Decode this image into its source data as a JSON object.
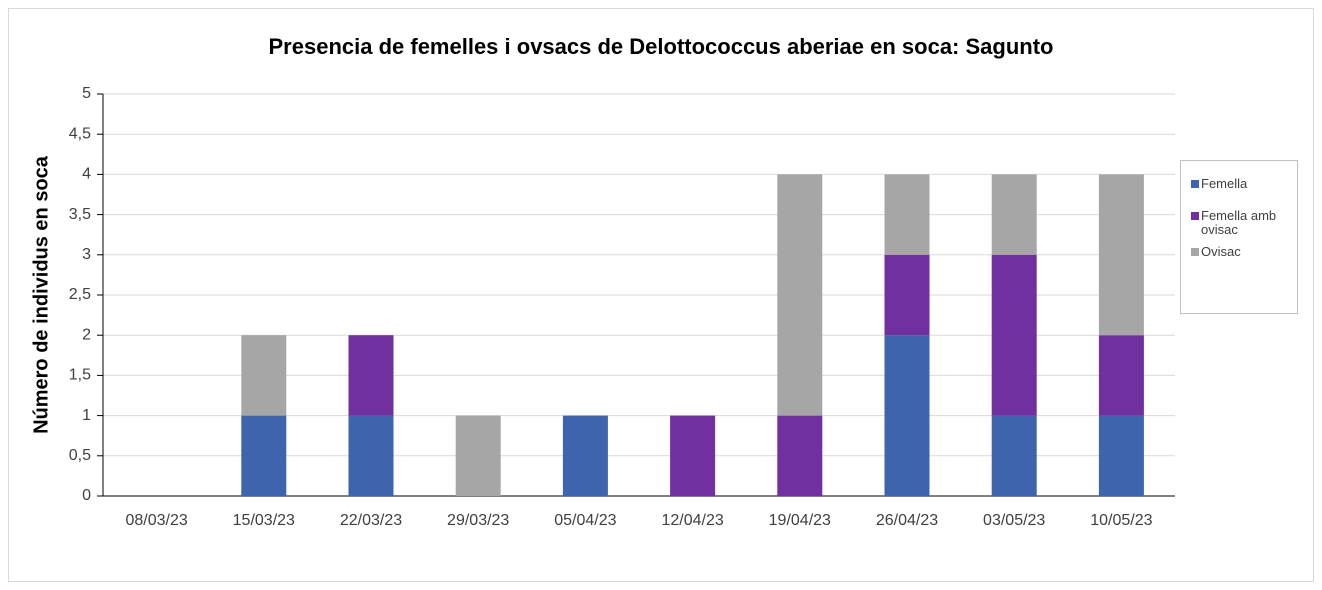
{
  "chart_data": {
    "type": "stacked_bar",
    "title": "Presencia de femelles i ovsacs de Delottococcus aberiae en soca: Sagunto",
    "y_label": "Número de individus en soca",
    "categories": [
      "08/03/23",
      "15/03/23",
      "22/03/23",
      "29/03/23",
      "05/04/23",
      "12/04/23",
      "19/04/23",
      "26/04/23",
      "03/05/23",
      "10/05/23"
    ],
    "series": [
      {
        "name": "Femella",
        "color": "#3d64ad",
        "values": [
          0,
          1,
          1,
          0,
          1,
          0,
          0,
          2,
          1,
          1
        ]
      },
      {
        "name": "Femella amb ovisac",
        "color": "#7030a0",
        "values": [
          0,
          0,
          1,
          0,
          0,
          1,
          1,
          1,
          2,
          1
        ]
      },
      {
        "name": "Ovisac",
        "color": "#a6a6a6",
        "values": [
          0,
          1,
          0,
          1,
          0,
          0,
          3,
          1,
          1,
          2
        ]
      }
    ],
    "ylim": [
      0,
      5
    ],
    "yticks": [
      0,
      {
        "value": 0.5,
        "label": "0,5"
      },
      1,
      {
        "value": 1.5,
        "label": "1,5"
      },
      2,
      {
        "value": 2.5,
        "label": "2,5"
      },
      3,
      {
        "value": 3.5,
        "label": "3,5"
      },
      4,
      {
        "value": 4.5,
        "label": "4,5"
      },
      5
    ],
    "grid": true,
    "legend": "right"
  }
}
